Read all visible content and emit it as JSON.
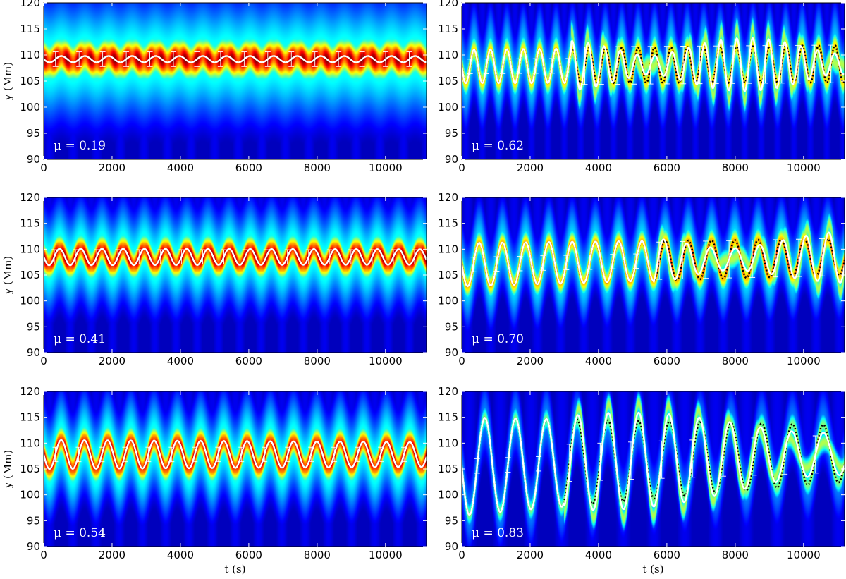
{
  "colors": {
    "colormap": "jet",
    "background": "#00007f",
    "centroid_line": "#ffffff",
    "reference_line": "#000000",
    "label_text": "#ffffff"
  },
  "chart_data": [
    {
      "type": "heatmap",
      "panel": "top-left",
      "mu_label": "μ = 0.19",
      "mu": 0.19,
      "xlabel": "",
      "ylabel": "y (Mm)",
      "xlim": [
        0,
        11200
      ],
      "ylim": [
        90,
        120
      ],
      "xticks": [
        0,
        2000,
        4000,
        6000,
        8000,
        10000
      ],
      "yticks": [
        90,
        95,
        100,
        105,
        110,
        115,
        120
      ],
      "period_s": 690,
      "center_Mm": 109.2,
      "amplitude_start_Mm": 0.6,
      "amplitude_end_Mm": 0.6,
      "width_Mm": 2.6,
      "intensity": 1.0,
      "grows_after_s": 11200,
      "mean_drift_Mm": 0
    },
    {
      "type": "heatmap",
      "panel": "top-right",
      "mu_label": "μ = 0.62",
      "mu": 0.62,
      "xlabel": "",
      "ylabel": "",
      "xlim": [
        0,
        11200
      ],
      "ylim": [
        90,
        120
      ],
      "xticks": [
        0,
        2000,
        4000,
        6000,
        8000,
        10000
      ],
      "yticks": [
        90,
        95,
        100,
        105,
        110,
        115,
        120
      ],
      "period_s": 480,
      "center_Mm": 107.8,
      "amplitude_start_Mm": 3.2,
      "amplitude_end_Mm": 3.6,
      "width_Mm": 1.9,
      "intensity": 0.8,
      "grows_after_s": 3200,
      "mean_drift_Mm": 0.5
    },
    {
      "type": "heatmap",
      "panel": "middle-left",
      "mu_label": "μ = 0.41",
      "mu": 0.41,
      "xlabel": "",
      "ylabel": "y (Mm)",
      "xlim": [
        0,
        11200
      ],
      "ylim": [
        90,
        120
      ],
      "xticks": [
        0,
        2000,
        4000,
        6000,
        8000,
        10000
      ],
      "yticks": [
        90,
        95,
        100,
        105,
        110,
        115,
        120
      ],
      "period_s": 620,
      "center_Mm": 108.5,
      "amplitude_start_Mm": 1.6,
      "amplitude_end_Mm": 1.5,
      "width_Mm": 2.1,
      "intensity": 1.0,
      "grows_after_s": 11200,
      "mean_drift_Mm": 0
    },
    {
      "type": "heatmap",
      "panel": "middle-right",
      "mu_label": "μ = 0.70",
      "mu": 0.7,
      "xlabel": "",
      "ylabel": "",
      "xlim": [
        0,
        11200
      ],
      "ylim": [
        90,
        120
      ],
      "xticks": [
        0,
        2000,
        4000,
        6000,
        8000,
        10000
      ],
      "yticks": [
        90,
        95,
        100,
        105,
        110,
        115,
        120
      ],
      "period_s": 680,
      "center_Mm": 107.0,
      "amplitude_start_Mm": 4.2,
      "amplitude_end_Mm": 3.5,
      "width_Mm": 1.8,
      "intensity": 0.85,
      "grows_after_s": 5600,
      "mean_drift_Mm": 1.5
    },
    {
      "type": "heatmap",
      "panel": "bottom-left",
      "mu_label": "μ = 0.54",
      "mu": 0.54,
      "xlabel": "t (s)",
      "ylabel": "y (Mm)",
      "xlim": [
        0,
        11200
      ],
      "ylim": [
        90,
        120
      ],
      "xticks": [
        0,
        2000,
        4000,
        6000,
        8000,
        10000
      ],
      "yticks": [
        90,
        95,
        100,
        105,
        110,
        115,
        120
      ],
      "period_s": 680,
      "center_Mm": 107.8,
      "amplitude_start_Mm": 2.8,
      "amplitude_end_Mm": 2.4,
      "width_Mm": 2.1,
      "intensity": 1.0,
      "grows_after_s": 11200,
      "mean_drift_Mm": 0
    },
    {
      "type": "heatmap",
      "panel": "bottom-right",
      "mu_label": "μ = 0.83",
      "mu": 0.83,
      "xlabel": "t (s)",
      "ylabel": "",
      "xlim": [
        0,
        11200
      ],
      "ylim": [
        90,
        120
      ],
      "xticks": [
        0,
        2000,
        4000,
        6000,
        8000,
        10000
      ],
      "yticks": [
        90,
        95,
        100,
        105,
        110,
        115,
        120
      ],
      "period_s": 900,
      "center_Mm": 105.5,
      "amplitude_start_Mm": 9.5,
      "amplitude_end_Mm": 5.5,
      "width_Mm": 1.7,
      "intensity": 0.62,
      "grows_after_s": 3000,
      "mean_drift_Mm": 2.5
    }
  ]
}
